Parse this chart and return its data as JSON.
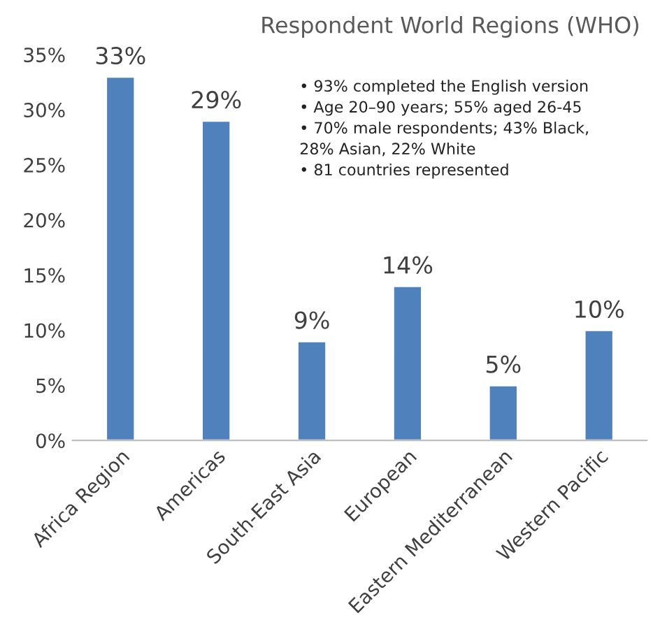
{
  "chart_data": {
    "type": "bar",
    "title": "Respondent World Regions (WHO)",
    "categories": [
      "Africa Region",
      "Americas",
      "South-East Asia",
      "European",
      "Eastern Mediterranean",
      "Western Pacific"
    ],
    "values": [
      33,
      29,
      9,
      14,
      5,
      10
    ],
    "color": "#4f81bd",
    "value_labels": [
      "33%",
      "29%",
      "9%",
      "14%",
      "5%",
      "10%"
    ],
    "ylim": [
      0,
      35
    ],
    "yticks": [
      {
        "value": 0,
        "label": "0%"
      },
      {
        "value": 5,
        "label": "5%"
      },
      {
        "value": 10,
        "label": "10%"
      },
      {
        "value": 15,
        "label": "15%"
      },
      {
        "value": 20,
        "label": "20%"
      },
      {
        "value": 25,
        "label": "25%"
      },
      {
        "value": 30,
        "label": "30%"
      },
      {
        "value": 35,
        "label": "35%"
      }
    ],
    "grid": false,
    "annotations": [
      "• 93% completed the English version\n• Age 20–90 years; 55% aged 26-45\n• 70% male respondents; 43% Black,\n28% Asian, 22% White\n• 81 countries represented"
    ]
  }
}
